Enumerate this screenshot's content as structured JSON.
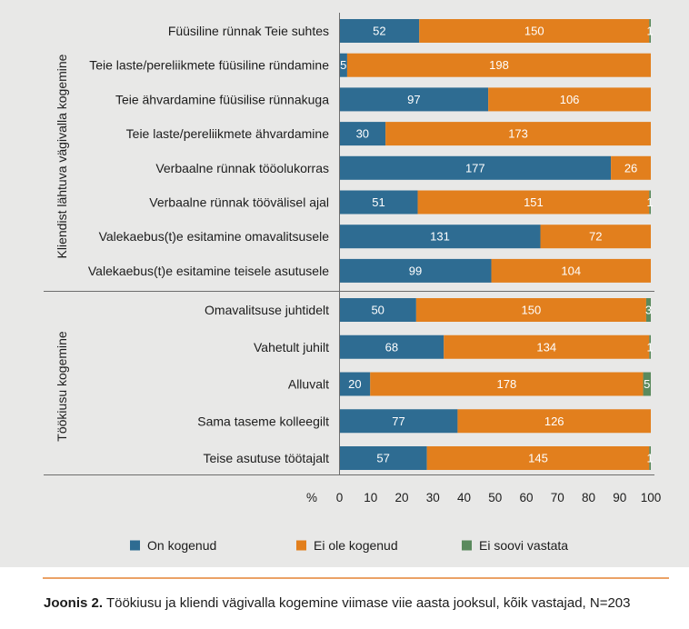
{
  "chart_data": {
    "type": "bar",
    "orientation": "horizontal",
    "stacking": "percent",
    "groups": [
      {
        "label": "Kliendist lähtuva vägivalla kogemine",
        "categories": [
          "Füüsiline rünnak Teie suhtes",
          "Teie laste/pereliikmete füüsiline ründamine",
          "Teie ähvardamine füüsilise rünnakuga",
          "Teie laste/pereliikmete ähvardamine",
          "Verbaalne rünnak tööolukorras",
          "Verbaalne rünnak töövälisel ajal",
          "Valekaebus(t)e esitamine omavalitsusele",
          "Valekaebus(t)e esitamine teisele asutusele"
        ]
      },
      {
        "label": "Töökiusu kogemine",
        "categories": [
          "Omavalitsuse juhtidelt",
          "Vahetult juhilt",
          "Alluvalt",
          "Sama taseme kolleegilt",
          "Teise asutuse töötajalt"
        ]
      }
    ],
    "series": [
      {
        "name": "On kogenud",
        "color": "#2e6c92",
        "values": [
          52,
          5,
          97,
          30,
          177,
          51,
          131,
          99,
          50,
          68,
          20,
          77,
          57
        ]
      },
      {
        "name": "Ei ole kogenud",
        "color": "#e27f1d",
        "values": [
          150,
          198,
          106,
          173,
          26,
          151,
          72,
          104,
          150,
          134,
          178,
          126,
          145
        ]
      },
      {
        "name": "Ei soovi vastata",
        "color": "#5a8a5d",
        "values": [
          1,
          null,
          null,
          null,
          null,
          1,
          null,
          null,
          3,
          1,
          5,
          null,
          1
        ]
      }
    ],
    "x_axis": {
      "label": "%",
      "range": [
        0,
        100
      ],
      "ticks": [
        0,
        10,
        20,
        30,
        40,
        50,
        60,
        70,
        80,
        90,
        100
      ]
    },
    "legend": "bottom",
    "grid": false
  },
  "caption": {
    "label": "Joonis 2.",
    "text": "Töökiusu ja kliendi vägivalla kogemine viimase viie aasta jooksul, kõik vastajad, N=203"
  },
  "colors": {
    "panel_background": "#e8e8e7",
    "axis_line": "#6d6d6d",
    "caption_rule": "#eba266"
  }
}
